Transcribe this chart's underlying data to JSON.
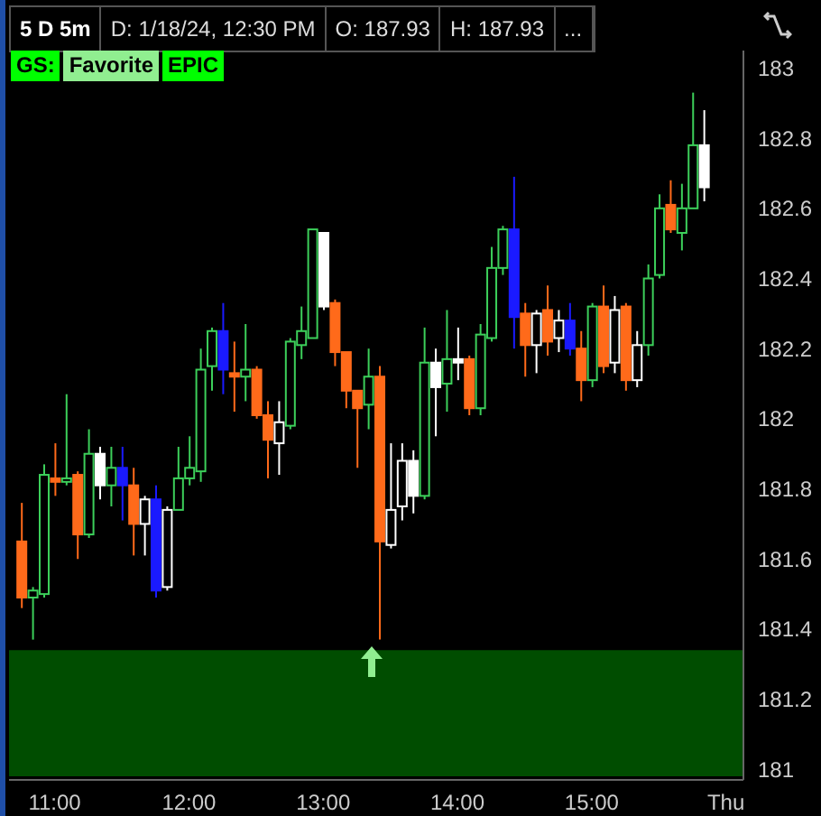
{
  "chart_data": {
    "type": "candlestick",
    "title": "5 D 5m",
    "annotations": [
      "D: 1/18/24, 12:30 PM",
      "O: 187.93",
      "H: 187.93",
      "...",
      "GS:",
      "Favorite",
      "EPIC"
    ],
    "x": [
      10.75,
      10.8333,
      10.9167,
      11,
      11.0833,
      11.1667,
      11.25,
      11.3333,
      11.4167,
      11.5,
      11.5833,
      11.6667,
      11.75,
      11.8333,
      11.9167,
      12,
      12.0833,
      12.1667,
      12.25,
      12.3333,
      12.4167,
      12.5,
      12.5833,
      12.6667,
      12.75,
      12.8333,
      12.9167,
      13,
      13.0833,
      13.1667,
      13.25,
      13.3333,
      13.4167,
      13.5,
      13.5833,
      13.6667,
      13.75,
      13.8333,
      13.9167,
      14,
      14.0833,
      14.1667,
      14.25,
      14.3333,
      14.4167,
      14.5,
      14.5833,
      14.6667,
      14.75,
      14.8333,
      14.9167,
      15,
      15.0833,
      15.1667,
      15.25,
      15.3333,
      15.4167,
      15.5,
      15.5833,
      15.6667,
      15.75,
      15.8333
    ],
    "ohlc": [
      [
        181.65,
        181.76,
        181.46,
        181.49
      ],
      [
        181.49,
        181.52,
        181.37,
        181.51
      ],
      [
        181.5,
        181.87,
        181.49,
        181.84
      ],
      [
        181.83,
        181.93,
        181.78,
        181.82
      ],
      [
        181.82,
        182.07,
        181.81,
        181.83
      ],
      [
        181.84,
        181.85,
        181.6,
        181.67
      ],
      [
        181.67,
        181.97,
        181.66,
        181.9
      ],
      [
        181.9,
        181.92,
        181.77,
        181.81
      ],
      [
        181.81,
        181.92,
        181.75,
        181.86
      ],
      [
        181.86,
        181.92,
        181.71,
        181.81
      ],
      [
        181.81,
        181.86,
        181.61,
        181.7
      ],
      [
        181.7,
        181.78,
        181.61,
        181.77
      ],
      [
        181.77,
        181.81,
        181.49,
        181.51
      ],
      [
        181.52,
        181.75,
        181.51,
        181.74
      ],
      [
        181.74,
        181.92,
        181.74,
        181.83
      ],
      [
        181.83,
        181.95,
        181.81,
        181.86
      ],
      [
        181.85,
        182.2,
        181.82,
        182.14
      ],
      [
        182.15,
        182.26,
        182.08,
        182.25
      ],
      [
        182.25,
        182.33,
        182.07,
        182.14
      ],
      [
        182.13,
        182.22,
        182.02,
        182.12
      ],
      [
        182.12,
        182.27,
        182.05,
        182.14
      ],
      [
        182.14,
        182.15,
        182,
        182.01
      ],
      [
        182.01,
        182.05,
        181.83,
        181.94
      ],
      [
        181.93,
        182.05,
        181.84,
        181.99
      ],
      [
        181.98,
        182.23,
        181.97,
        182.22
      ],
      [
        182.21,
        182.32,
        182.17,
        182.25
      ],
      [
        182.23,
        182.54,
        182.23,
        182.54
      ],
      [
        182.53,
        182.53,
        182.31,
        182.32
      ],
      [
        182.33,
        182.34,
        182.15,
        182.19
      ],
      [
        182.19,
        182.19,
        182.03,
        182.08
      ],
      [
        182.08,
        182.08,
        181.86,
        182.03
      ],
      [
        182.04,
        182.2,
        181.97,
        182.12
      ],
      [
        182.12,
        182.15,
        181.37,
        181.65
      ],
      [
        181.64,
        181.93,
        181.63,
        181.74
      ],
      [
        181.75,
        181.93,
        181.71,
        181.88
      ],
      [
        181.88,
        181.91,
        181.73,
        181.78
      ],
      [
        181.78,
        182.26,
        181.77,
        182.16
      ],
      [
        182.16,
        182.2,
        181.95,
        182.09
      ],
      [
        182.1,
        182.31,
        182.02,
        182.17
      ],
      [
        182.17,
        182.26,
        182.11,
        182.16
      ],
      [
        182.17,
        182.18,
        182.01,
        182.03
      ],
      [
        182.03,
        182.27,
        182.01,
        182.24
      ],
      [
        182.23,
        182.49,
        182.22,
        182.43
      ],
      [
        182.43,
        182.55,
        182.41,
        182.54
      ],
      [
        182.54,
        182.69,
        182.2,
        182.29
      ],
      [
        182.3,
        182.33,
        182.12,
        182.21
      ],
      [
        182.21,
        182.31,
        182.13,
        182.3
      ],
      [
        182.31,
        182.38,
        182.18,
        182.22
      ],
      [
        182.23,
        182.31,
        182.19,
        182.28
      ],
      [
        182.28,
        182.33,
        182.18,
        182.2
      ],
      [
        182.2,
        182.25,
        182.05,
        182.11
      ],
      [
        182.11,
        182.33,
        182.09,
        182.32
      ],
      [
        182.32,
        182.38,
        182.13,
        182.15
      ],
      [
        182.16,
        182.35,
        182.13,
        182.31
      ],
      [
        182.32,
        182.33,
        182.08,
        182.11
      ],
      [
        182.11,
        182.25,
        182.09,
        182.21
      ],
      [
        182.21,
        182.44,
        182.18,
        182.4
      ],
      [
        182.41,
        182.64,
        182.4,
        182.6
      ],
      [
        182.61,
        182.68,
        182.53,
        182.54
      ],
      [
        182.53,
        182.67,
        182.48,
        182.6
      ],
      [
        182.6,
        182.93,
        182.6,
        182.78
      ],
      [
        182.78,
        182.88,
        182.62,
        182.66
      ]
    ],
    "colors": [
      "#ff6a1a",
      "#3ccf5a",
      "#3ccf5a",
      "#ff6a1a",
      "#3ccf5a",
      "#ff6a1a",
      "#3ccf5a",
      "#ffffff",
      "#3ccf5a",
      "#1a1aff",
      "#ff6a1a",
      "#ffffff",
      "#1a1aff",
      "#ffffff",
      "#3ccf5a",
      "#3ccf5a",
      "#3ccf5a",
      "#3ccf5a",
      "#1a1aff",
      "#ff6a1a",
      "#3ccf5a",
      "#ff6a1a",
      "#ff6a1a",
      "#ffffff",
      "#3ccf5a",
      "#3ccf5a",
      "#3ccf5a",
      "#ffffff",
      "#ff6a1a",
      "#ff6a1a",
      "#ff6a1a",
      "#3ccf5a",
      "#ff6a1a",
      "#ffffff",
      "#ffffff",
      "#ffffff",
      "#3ccf5a",
      "#ffffff",
      "#3ccf5a",
      "#ffffff",
      "#ff6a1a",
      "#3ccf5a",
      "#3ccf5a",
      "#3ccf5a",
      "#1a1aff",
      "#ff6a1a",
      "#ffffff",
      "#ff6a1a",
      "#ffffff",
      "#1a1aff",
      "#ff6a1a",
      "#3ccf5a",
      "#ff6a1a",
      "#ffffff",
      "#ff6a1a",
      "#ffffff",
      "#3ccf5a",
      "#3ccf5a",
      "#ff6a1a",
      "#3ccf5a",
      "#3ccf5a",
      "#ffffff"
    ],
    "xlim": [
      10.66,
      16.13
    ],
    "xticks": [
      {
        "value": 11,
        "label": "11:00"
      },
      {
        "value": 12,
        "label": "12:00"
      },
      {
        "value": 13,
        "label": "13:00"
      },
      {
        "value": 14,
        "label": "14:00"
      },
      {
        "value": 15,
        "label": "15:00"
      },
      {
        "value": 16,
        "label": "Thu"
      }
    ],
    "ylim": [
      180.97,
      183.05
    ],
    "yticks": [
      181,
      181.2,
      181.4,
      181.6,
      181.8,
      182,
      182.2,
      182.4,
      182.6,
      182.8,
      183
    ],
    "bands": [
      {
        "axis": "y",
        "from": 180.98,
        "to": 181.34,
        "color": "#004d00"
      }
    ]
  }
}
